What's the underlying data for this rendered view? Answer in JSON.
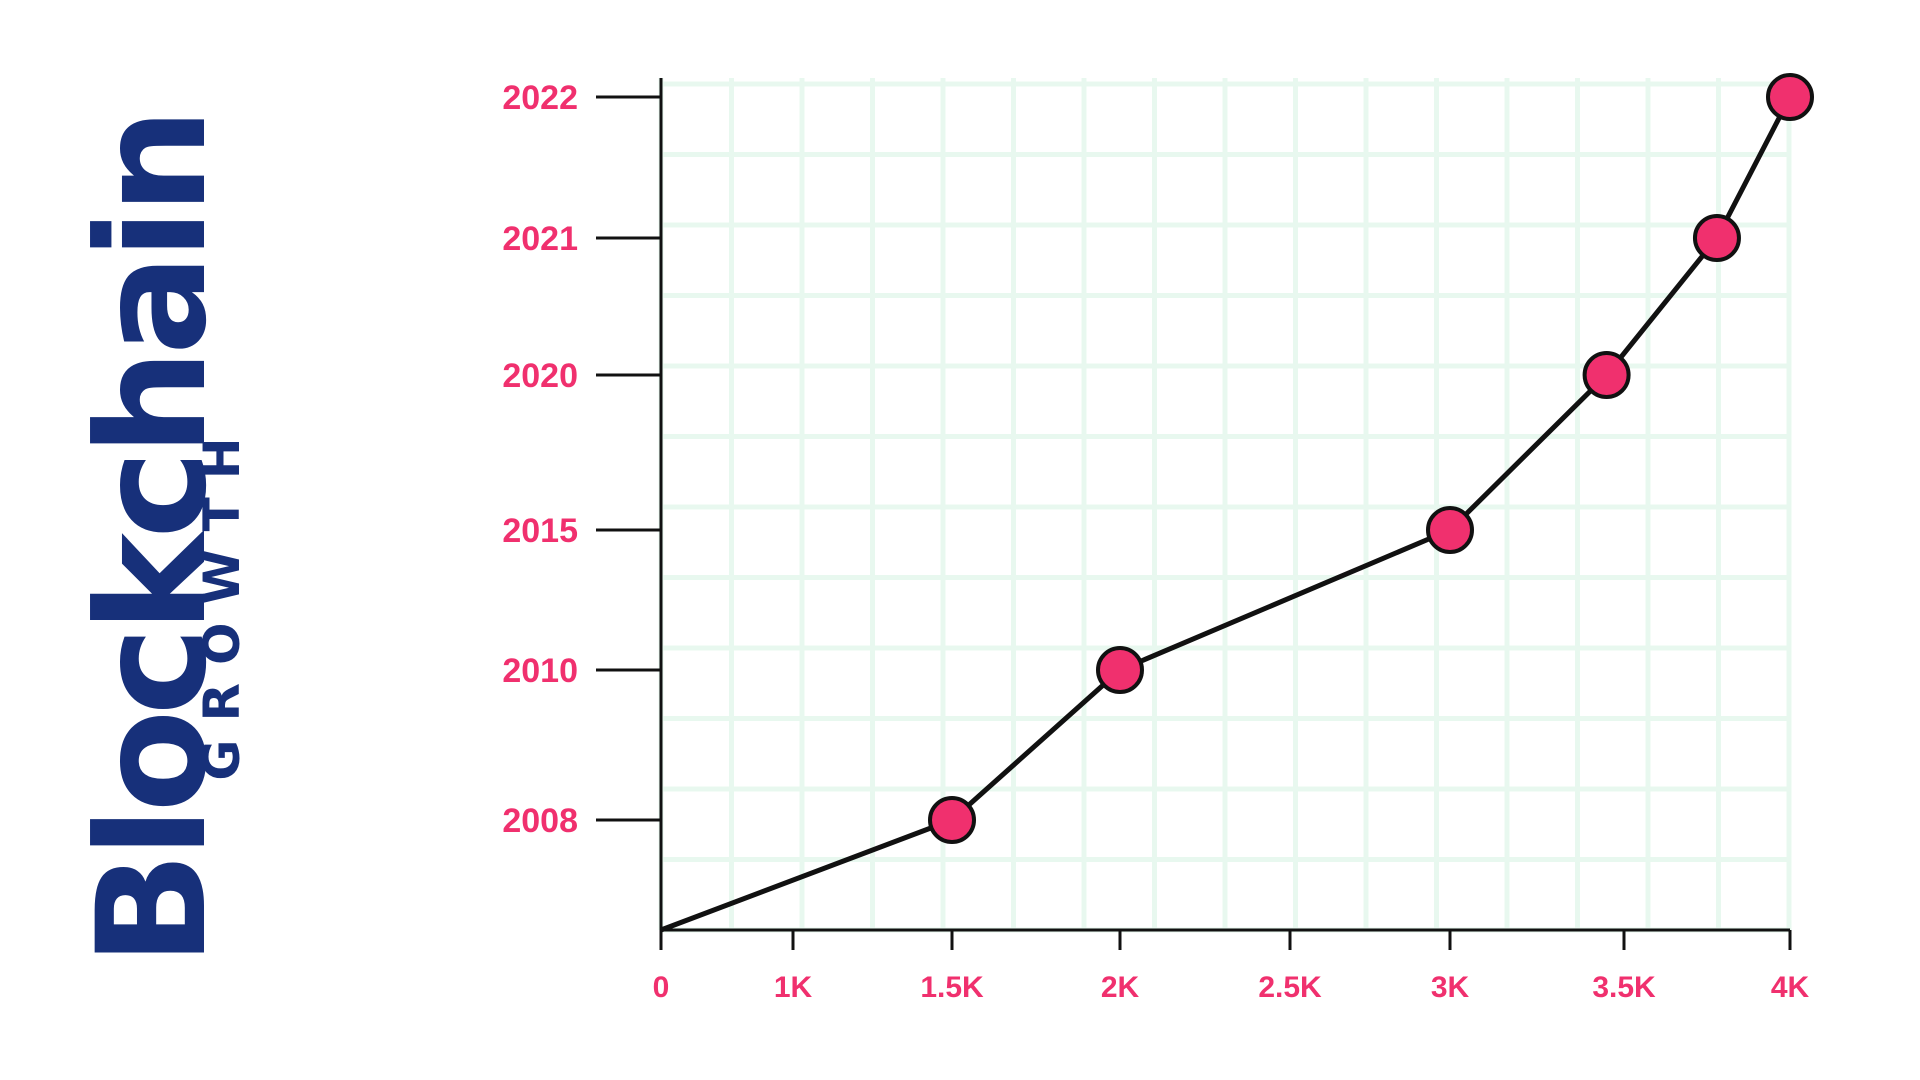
{
  "title": "Blockchain",
  "subtitle": "GROWTH",
  "colors": {
    "title": "#17307a",
    "accent": "#f0306e",
    "grid": "#e8f8ef",
    "line": "#111111"
  },
  "chart_data": {
    "type": "line",
    "title": "Blockchain",
    "subtitle": "GROWTH",
    "xlabel": "",
    "ylabel": "",
    "xlim": [
      0,
      4000
    ],
    "x_ticks": [
      "0",
      "1K",
      "1.5K",
      "2K",
      "2.5K",
      "3K",
      "3.5K",
      "4K"
    ],
    "y_ticks": [
      "2008",
      "2010",
      "2015",
      "2020",
      "2021",
      "2022"
    ],
    "grid": true,
    "series": [
      {
        "x": [
          0,
          1500,
          2000,
          3000,
          3450,
          3780,
          4000
        ],
        "y": [
          null,
          "2008",
          "2010",
          "2015",
          "2020",
          "2021",
          "2022"
        ]
      }
    ]
  }
}
